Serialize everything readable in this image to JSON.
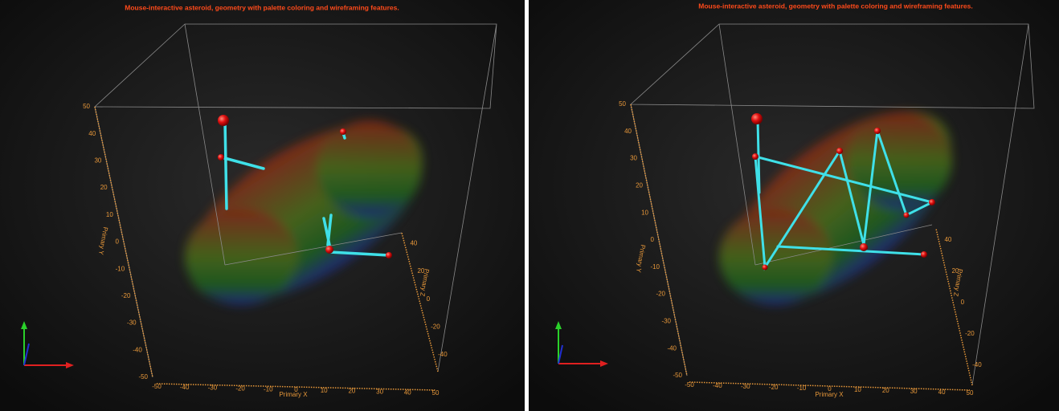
{
  "panels": [
    {
      "title": "Mouse-interactive asteroid, geometry with palette coloring and wireframing features.",
      "axes": {
        "x": {
          "label": "Primary X",
          "ticks": [
            "-50",
            "-40",
            "-30",
            "-20",
            "-10",
            "0",
            "10",
            "20",
            "30",
            "40",
            "50"
          ]
        },
        "y": {
          "label": "Primary Y",
          "ticks": [
            "50",
            "40",
            "30",
            "20",
            "10",
            "0",
            "-10",
            "-20",
            "-30",
            "-40",
            "-50"
          ]
        },
        "z": {
          "label": "Primary Z",
          "ticks": [
            "40",
            "20",
            "0",
            "-20",
            "-40"
          ]
        }
      }
    },
    {
      "title": "Mouse-interactive asteroid, geometry with palette coloring and wireframing features.",
      "axes": {
        "x": {
          "label": "Primary X",
          "ticks": [
            "-50",
            "-40",
            "-30",
            "-20",
            "-10",
            "0",
            "10",
            "20",
            "30",
            "40",
            "50"
          ]
        },
        "y": {
          "label": "Primary Y",
          "ticks": [
            "50",
            "40",
            "30",
            "20",
            "10",
            "0",
            "-10",
            "-20",
            "-30",
            "-40",
            "-50"
          ]
        },
        "z": {
          "label": "Primary Z",
          "ticks": [
            "40",
            "20",
            "0",
            "-20",
            "-40"
          ]
        }
      }
    }
  ]
}
